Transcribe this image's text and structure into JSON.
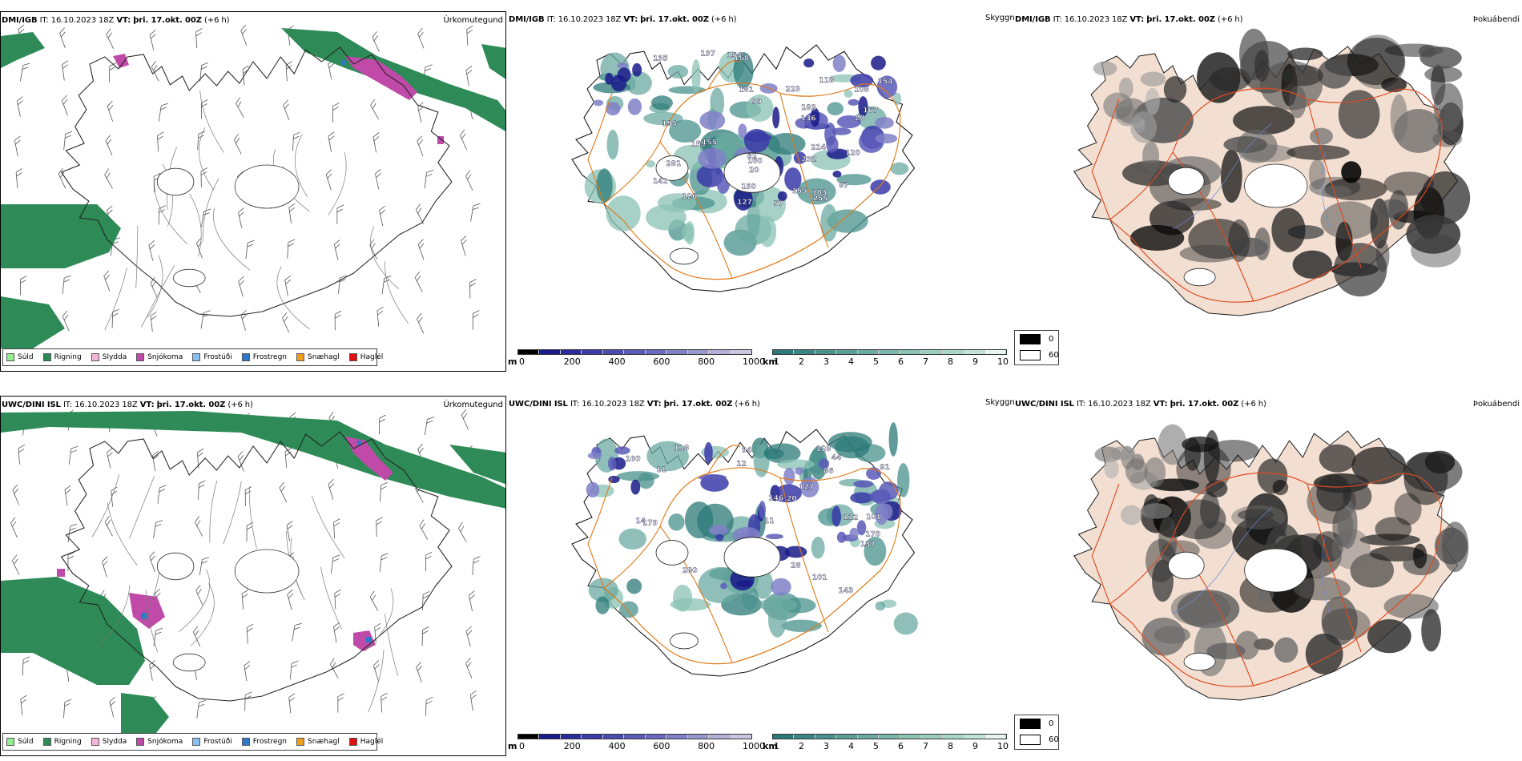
{
  "rows": [
    {
      "id": "row-dmi",
      "precip": {
        "model": "DMI/IGB",
        "it_label": "IT:",
        "it_value": "16.10.2023 18Z",
        "vt_label": "VT:",
        "vt_value": "þri. 17.okt. 00Z",
        "lead": "(+6 h)",
        "title": "Úrkomutegund"
      },
      "cloud": {
        "model": "DMI/IGB",
        "it_label": "IT:",
        "it_value": "16.10.2023 18Z",
        "vt_label": "VT:",
        "vt_value": "þri. 17.okt. 00Z",
        "lead": "(+6 h)",
        "title": "Skyggni",
        "labels": [
          "194",
          "137",
          "99",
          "118",
          "20",
          "154",
          "181",
          "108",
          "127",
          "57",
          "87",
          "126",
          "62",
          "155",
          "136",
          "160",
          "232",
          "141",
          "167",
          "159",
          "20",
          "135",
          "255",
          "155",
          "168",
          "154",
          "214",
          "281",
          "223",
          "150",
          "183",
          "183",
          "120"
        ]
      },
      "fog": {
        "model": "DMI/IGB",
        "it_label": "IT:",
        "it_value": "16.10.2023 18Z",
        "vt_label": "VT:",
        "vt_value": "þri. 17.okt. 00Z",
        "lead": "(+6 h)",
        "title": "Þokuábendi"
      }
    },
    {
      "id": "row-uwc",
      "precip": {
        "model": "UWC/DINI ISL",
        "it_label": "IT:",
        "it_value": "16.10.2023 18Z",
        "vt_label": "VT:",
        "vt_value": "þri. 17.okt. 00Z",
        "lead": "(+6 h)",
        "title": "Úrkomutegund"
      },
      "cloud": {
        "model": "UWC/DINI ISL",
        "it_label": "IT:",
        "it_value": "16.10.2023 18Z",
        "vt_label": "VT:",
        "vt_value": "þri. 17.okt. 00Z",
        "lead": "(+6 h)",
        "title": "Skyggni",
        "labels": [
          "127",
          "28",
          "44",
          "20",
          "101",
          "146",
          "137",
          "91",
          "118",
          "112",
          "11",
          "14",
          "86",
          "101",
          "94",
          "100",
          "179",
          "128",
          "170",
          "11",
          "280",
          "143",
          "12"
        ]
      },
      "fog": {
        "model": "UWC/DINI ISL",
        "it_label": "IT:",
        "it_value": "16.10.2023 18Z",
        "vt_label": "VT:",
        "vt_value": "þri. 17.okt. 00Z",
        "lead": "(+6 h)",
        "title": "Þokuábendi"
      }
    }
  ],
  "precip_legend": [
    {
      "label": "Súld",
      "color": "#90ee90"
    },
    {
      "label": "Rigning",
      "color": "#2e8b57"
    },
    {
      "label": "Slydda",
      "color": "#f4b6d8"
    },
    {
      "label": "Snjókoma",
      "color": "#c04aa8"
    },
    {
      "label": "Frostúði",
      "color": "#87bff0"
    },
    {
      "label": "Frostregn",
      "color": "#2f78c8"
    },
    {
      "label": "Snæhagl",
      "color": "#f0a020"
    },
    {
      "label": "Haglél",
      "color": "#e01010"
    }
  ],
  "cloud_base_scale": {
    "unit": "m",
    "ticks": [
      "0",
      "200",
      "400",
      "600",
      "800",
      "1000"
    ],
    "colors": [
      "#000000",
      "#1a1a8a",
      "#2a2a9c",
      "#3a3aa8",
      "#4a4ab0",
      "#5a5ab8",
      "#6a6ac0",
      "#8080c8",
      "#9898d0",
      "#b0b0d8",
      "#c8c8e4"
    ]
  },
  "visibility_scale": {
    "unit": "km",
    "ticks": [
      "1",
      "2",
      "3",
      "4",
      "5",
      "6",
      "7",
      "8",
      "9",
      "10"
    ],
    "colors": [
      "#2b7a78",
      "#3a8682",
      "#4a928c",
      "#5a9e96",
      "#6aaaa0",
      "#7ab6aa",
      "#8ac2b4",
      "#9aceBE",
      "#aad8c8",
      "#c0e4d8",
      "#e8f4f0"
    ]
  },
  "fog_legend": [
    {
      "label": "0",
      "color": "#000000"
    },
    {
      "label": "60",
      "color": "#ffffff"
    }
  ]
}
